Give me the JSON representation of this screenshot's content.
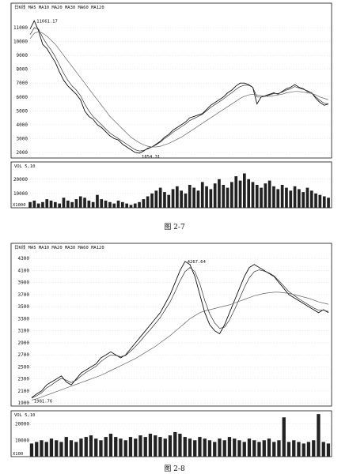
{
  "chart_data": [
    {
      "type": "line",
      "caption": "图 2-7",
      "header_text": "日K线 MA5  MA10  MA20  MA30  MA60  MA120",
      "high_marker": "11661.17",
      "low_marker": "1854.31",
      "price_axis": {
        "ticks": [
          11000,
          10000,
          9000,
          8000,
          7000,
          6000,
          5000,
          4000,
          3000,
          2000
        ],
        "ylim": [
          1600,
          12200
        ]
      },
      "volume_header": "VOL 5,10",
      "volume_axis": {
        "ticks": [
          20000,
          10000
        ],
        "ylim": [
          0,
          32000
        ],
        "unit_label": "X1000"
      },
      "series": [
        {
          "name": "MA5",
          "values": [
            10900,
            11500,
            10800,
            9800,
            9500,
            9000,
            8500,
            7800,
            7200,
            6800,
            6500,
            6200,
            5800,
            5000,
            4600,
            4400,
            4000,
            3800,
            3500,
            3200,
            3000,
            2900,
            2600,
            2400,
            2200,
            2000,
            1950,
            2100,
            2300,
            2400,
            2600,
            2800,
            3100,
            3300,
            3600,
            3800,
            4000,
            4200,
            4500,
            4600,
            4700,
            4800,
            5100,
            5400,
            5600,
            5800,
            6000,
            6300,
            6500,
            6800,
            7000,
            7000,
            6900,
            6700,
            5500,
            6000,
            6100,
            6200,
            6300,
            6200,
            6400,
            6600,
            6700,
            6900,
            6700,
            6600,
            6400,
            6300,
            5900,
            5600,
            5400,
            5500
          ]
        },
        {
          "name": "MA10",
          "values": [
            10500,
            11000,
            10900,
            10300,
            9800,
            9400,
            8900,
            8300,
            7700,
            7200,
            6800,
            6500,
            6100,
            5500,
            5000,
            4600,
            4300,
            4000,
            3700,
            3400,
            3200,
            3000,
            2800,
            2600,
            2400,
            2200,
            2100,
            2150,
            2250,
            2400,
            2550,
            2750,
            3000,
            3200,
            3450,
            3650,
            3850,
            4050,
            4300,
            4450,
            4600,
            4750,
            5000,
            5250,
            5450,
            5650,
            5850,
            6100,
            6300,
            6550,
            6750,
            6850,
            6850,
            6700,
            6000,
            6000,
            6050,
            6150,
            6250,
            6250,
            6350,
            6500,
            6600,
            6750,
            6650,
            6550,
            6450,
            6300,
            6000,
            5750,
            5550,
            5500
          ]
        },
        {
          "name": "MA60",
          "values": [
            10200,
            10600,
            10700,
            10600,
            10400,
            10100,
            9800,
            9400,
            9000,
            8600,
            8200,
            7800,
            7400,
            7000,
            6600,
            6200,
            5800,
            5400,
            5000,
            4600,
            4300,
            4000,
            3700,
            3400,
            3100,
            2900,
            2700,
            2550,
            2450,
            2400,
            2400,
            2450,
            2550,
            2650,
            2800,
            2950,
            3100,
            3300,
            3500,
            3700,
            3900,
            4100,
            4300,
            4500,
            4700,
            4900,
            5100,
            5300,
            5500,
            5700,
            5900,
            6050,
            6150,
            6200,
            6150,
            6100,
            6050,
            6050,
            6100,
            6150,
            6200,
            6300,
            6350,
            6400,
            6400,
            6350,
            6300,
            6250,
            6150,
            6000,
            5900,
            5800
          ]
        }
      ],
      "volume_values": [
        4000,
        5000,
        3000,
        4000,
        6000,
        5000,
        4000,
        3000,
        7000,
        5000,
        4000,
        6000,
        8000,
        7000,
        5000,
        4000,
        9000,
        6000,
        5000,
        4000,
        3000,
        5000,
        4000,
        3000,
        2000,
        3000,
        4000,
        6000,
        8000,
        10000,
        12000,
        14000,
        11000,
        9000,
        13000,
        15000,
        12000,
        10000,
        16000,
        14000,
        12000,
        18000,
        15000,
        13000,
        17000,
        20000,
        16000,
        14000,
        18000,
        22000,
        19000,
        24000,
        20000,
        18000,
        16000,
        14000,
        17000,
        19000,
        15000,
        13000,
        16000,
        14000,
        12000,
        15000,
        13000,
        11000,
        14000,
        12000,
        10000,
        9000,
        8000,
        7000
      ]
    },
    {
      "type": "line",
      "caption": "图 2-8",
      "header_text": "日K线 MA5  MA10  MA20  MA30  MA60  MA120",
      "high_marker": "4267.64",
      "low_marker": "1981.76",
      "price_axis": {
        "ticks": [
          4300,
          4100,
          3900,
          3700,
          3500,
          3300,
          3100,
          2900,
          2700,
          2500,
          2300,
          2100,
          1900
        ],
        "ylim": [
          1850,
          4420
        ]
      },
      "volume_header": "VOL 5,10",
      "volume_axis": {
        "ticks": [
          20000,
          10000
        ],
        "ylim": [
          0,
          28000
        ],
        "unit_label": "X100"
      },
      "series": [
        {
          "name": "MA5",
          "values": [
            1990,
            2050,
            2100,
            2200,
            2250,
            2300,
            2350,
            2250,
            2200,
            2300,
            2400,
            2450,
            2500,
            2550,
            2650,
            2700,
            2750,
            2700,
            2650,
            2700,
            2800,
            2900,
            3000,
            3100,
            3200,
            3300,
            3400,
            3550,
            3700,
            3900,
            4100,
            4250,
            4200,
            4000,
            3700,
            3400,
            3200,
            3100,
            3050,
            3200,
            3400,
            3600,
            3800,
            4000,
            4150,
            4200,
            4150,
            4100,
            4050,
            4000,
            3900,
            3800,
            3700,
            3650,
            3600,
            3550,
            3500,
            3450,
            3400,
            3450,
            3400
          ]
        },
        {
          "name": "MA10",
          "values": [
            1980,
            2020,
            2070,
            2150,
            2200,
            2260,
            2310,
            2280,
            2240,
            2280,
            2350,
            2410,
            2460,
            2510,
            2590,
            2650,
            2700,
            2690,
            2670,
            2690,
            2760,
            2840,
            2930,
            3030,
            3120,
            3220,
            3320,
            3450,
            3580,
            3750,
            3930,
            4080,
            4150,
            4080,
            3880,
            3600,
            3380,
            3230,
            3140,
            3160,
            3280,
            3450,
            3630,
            3820,
            3980,
            4080,
            4110,
            4090,
            4060,
            4010,
            3930,
            3840,
            3750,
            3690,
            3630,
            3580,
            3530,
            3480,
            3440,
            3440,
            3420
          ]
        },
        {
          "name": "MA60",
          "values": [
            1950,
            1970,
            2000,
            2030,
            2060,
            2090,
            2120,
            2150,
            2180,
            2210,
            2240,
            2270,
            2300,
            2330,
            2360,
            2400,
            2440,
            2480,
            2520,
            2560,
            2600,
            2640,
            2690,
            2740,
            2790,
            2840,
            2900,
            2960,
            3020,
            3090,
            3160,
            3230,
            3300,
            3350,
            3400,
            3430,
            3450,
            3470,
            3490,
            3510,
            3530,
            3560,
            3590,
            3620,
            3650,
            3680,
            3700,
            3720,
            3730,
            3740,
            3740,
            3730,
            3720,
            3700,
            3680,
            3660,
            3640,
            3610,
            3580,
            3560,
            3540
          ]
        }
      ],
      "volume_values": [
        8000,
        9000,
        10000,
        9000,
        11000,
        10000,
        9000,
        12000,
        10000,
        9000,
        11000,
        12000,
        13000,
        11000,
        10000,
        12000,
        14000,
        12000,
        11000,
        10000,
        12000,
        11000,
        13000,
        12000,
        14000,
        13000,
        12000,
        11000,
        13000,
        15000,
        14000,
        12000,
        11000,
        10000,
        12000,
        11000,
        10000,
        9000,
        11000,
        10000,
        12000,
        11000,
        10000,
        9000,
        11000,
        10000,
        9000,
        10000,
        11000,
        9000,
        10000,
        24000,
        9000,
        10000,
        9000,
        8000,
        9000,
        10000,
        26000,
        9000,
        8000
      ]
    }
  ]
}
